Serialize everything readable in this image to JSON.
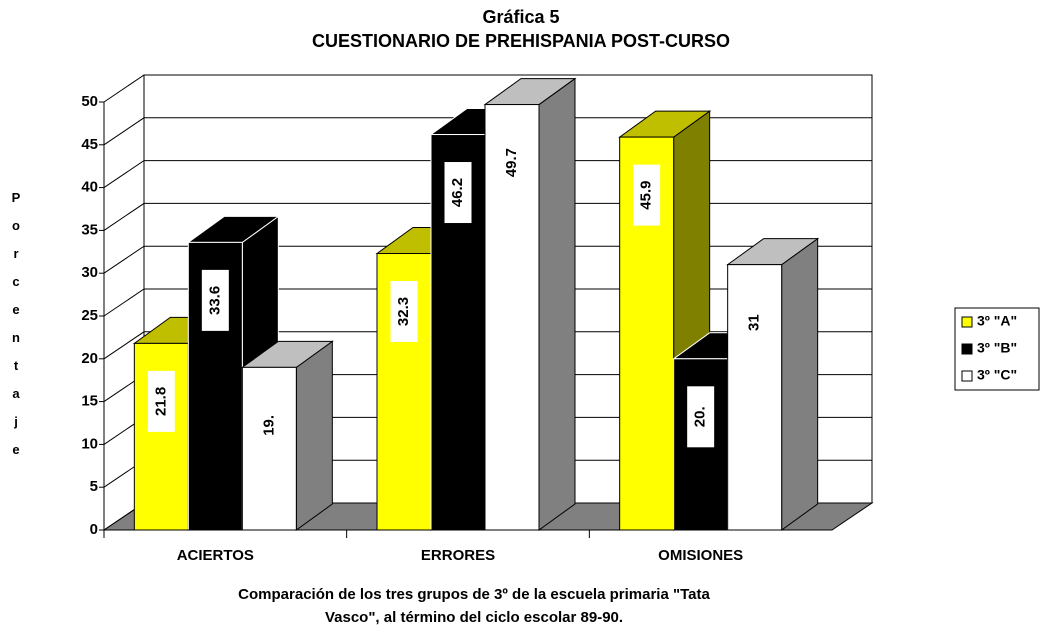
{
  "chart_data": {
    "type": "bar3d",
    "title": [
      "Gráfica 5",
      "CUESTIONARIO DE PREHISPANIA POST-CURSO"
    ],
    "y_label": "Porcentaje",
    "caption": [
      "Comparación de los tres grupos de 3º de la escuela primaria \"Tata",
      "Vasco\", al término del ciclo escolar 89-90."
    ],
    "categories": [
      "ACIERTOS",
      "ERRORES",
      "OMISIONES"
    ],
    "series": [
      {
        "name": "3º \"A\"",
        "color": "#ffff00",
        "values": [
          21.8,
          32.3,
          45.9
        ],
        "value_labels": [
          "21.8",
          "32.3",
          "45.9"
        ]
      },
      {
        "name": "3º \"B\"",
        "color": "#000000",
        "values": [
          33.6,
          46.2,
          20
        ],
        "value_labels": [
          "33.6",
          "46.2",
          "20."
        ]
      },
      {
        "name": "3º \"C\"",
        "color": "#ffffff",
        "values": [
          19,
          49.7,
          31
        ],
        "value_labels": [
          "19.",
          "49.7",
          "31"
        ]
      }
    ],
    "ylim": [
      0,
      50
    ],
    "yticks": [
      0,
      5,
      10,
      15,
      20,
      25,
      30,
      35,
      40,
      45,
      50
    ],
    "grid": true,
    "legend": "right"
  }
}
